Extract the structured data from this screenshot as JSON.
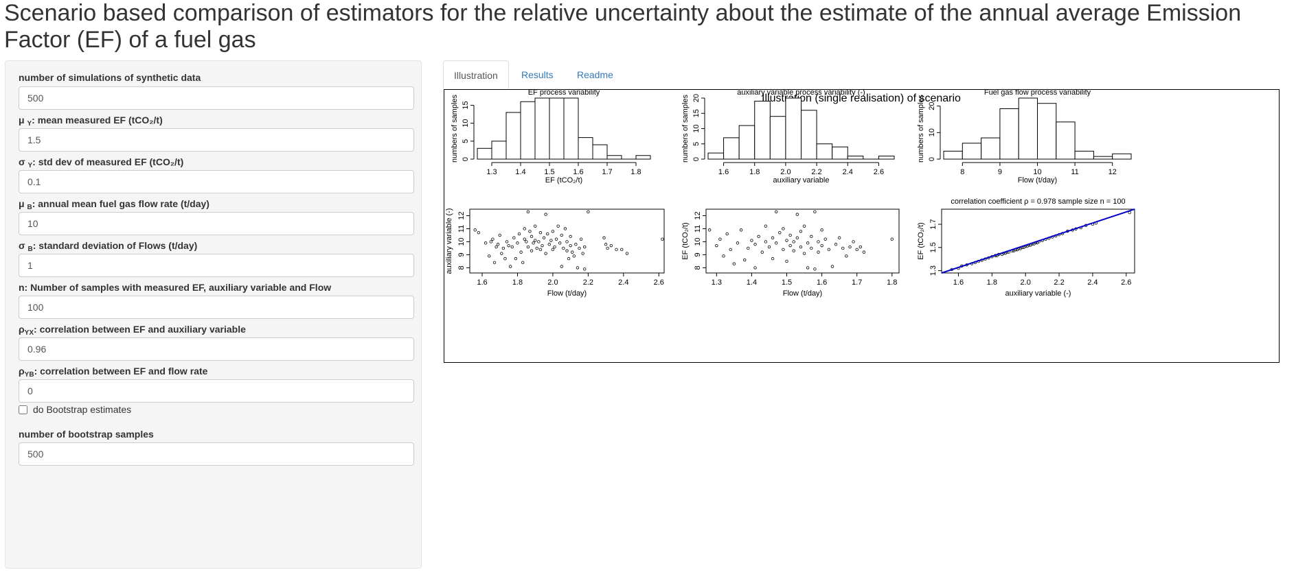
{
  "page": {
    "title": "Scenario based comparison of estimators for the relative uncertainty about the estimate of the annual average Emission Factor (EF) of a fuel gas"
  },
  "sidebar": {
    "fields": [
      {
        "label_pre": "number of simulations of synthetic data",
        "label_sub": "",
        "label_post": "",
        "value": "500"
      },
      {
        "label_pre": "μ ",
        "label_sub": "Y",
        "label_post": ": mean measured EF (tCO₂/t)",
        "value": "1.5"
      },
      {
        "label_pre": "σ ",
        "label_sub": "Y",
        "label_post": ": std dev of measured EF (tCO₂/t)",
        "value": "0.1"
      },
      {
        "label_pre": "μ ",
        "label_sub": "B",
        "label_post": ": annual mean fuel gas flow rate (t/day)",
        "value": "10"
      },
      {
        "label_pre": "σ ",
        "label_sub": "B",
        "label_post": ": standard deviation of Flows (t/day)",
        "value": "1"
      },
      {
        "label_pre": "n: Number of samples with measured EF, auxiliary variable and Flow",
        "label_sub": "",
        "label_post": "",
        "value": "100"
      },
      {
        "label_pre": "ρ",
        "label_sub": "YX",
        "label_post": ": correlation between EF and auxiliary variable",
        "value": "0.96"
      },
      {
        "label_pre": "ρ",
        "label_sub": "YB",
        "label_post": ": correlation between EF and flow rate",
        "value": "0"
      }
    ],
    "bootstrap_checkbox": {
      "label": "do Bootstrap estimates",
      "checked": false
    },
    "bootstrap_samples": {
      "label": "number of bootstrap samples",
      "value": "500"
    }
  },
  "tabs": [
    {
      "label": "Illustration",
      "active": true
    },
    {
      "label": "Results",
      "active": false
    },
    {
      "label": "Readme",
      "active": false
    }
  ],
  "figure": {
    "title": "Illustration (single realisation) of scenario"
  },
  "chart_data": [
    {
      "type": "bar",
      "subtype": "histogram",
      "title": "EF process variability",
      "xlabel": "EF (tCO₂/t)",
      "ylabel": "numbers of samples",
      "bin_edges": [
        1.25,
        1.3,
        1.35,
        1.4,
        1.45,
        1.5,
        1.55,
        1.6,
        1.65,
        1.7,
        1.75,
        1.8,
        1.85
      ],
      "values": [
        3,
        5,
        13,
        16,
        17,
        17,
        17,
        6,
        4,
        1,
        0,
        1
      ],
      "xticks": [
        "1.3",
        "1.4",
        "1.5",
        "1.6",
        "1.7",
        "1.8"
      ],
      "yticks": [
        "0",
        "5",
        "10",
        "15"
      ],
      "xlim": [
        1.25,
        1.85
      ],
      "ylim": [
        0,
        17
      ]
    },
    {
      "type": "bar",
      "subtype": "histogram",
      "title": "auxiliary variable process variability (-)",
      "xlabel": "auxiliary variable",
      "ylabel": "numbers of samples",
      "bin_edges": [
        1.5,
        1.6,
        1.7,
        1.8,
        1.9,
        2.0,
        2.1,
        2.2,
        2.3,
        2.4,
        2.5,
        2.6,
        2.7
      ],
      "values": [
        2,
        7,
        11,
        19,
        14,
        20,
        16,
        5,
        4,
        1,
        0,
        1
      ],
      "xticks": [
        "1.6",
        "1.8",
        "2.0",
        "2.2",
        "2.4",
        "2.6"
      ],
      "yticks": [
        "0",
        "5",
        "10",
        "15",
        "20"
      ],
      "xlim": [
        1.5,
        2.7
      ],
      "ylim": [
        0,
        20
      ]
    },
    {
      "type": "bar",
      "subtype": "histogram",
      "title": "Fuel gas flow process variability",
      "xlabel": "Flow (t/day)",
      "ylabel": "numbers of samples",
      "bin_edges": [
        7.5,
        8,
        8.5,
        9,
        9.5,
        10,
        10.5,
        11,
        11.5,
        12,
        12.5
      ],
      "values": [
        3,
        6,
        8,
        19,
        23,
        21,
        14,
        3,
        1,
        2
      ],
      "xticks": [
        "8",
        "9",
        "10",
        "11",
        "12"
      ],
      "yticks": [
        "0",
        "10",
        "20"
      ],
      "xlim": [
        7.5,
        12.5
      ],
      "ylim": [
        0,
        23
      ]
    },
    {
      "type": "scatter",
      "title": "",
      "xlabel": "Flow (t/day)",
      "ylabel": "auxiliary variable (-)",
      "xticks": [
        "1.6",
        "1.8",
        "2.0",
        "2.2",
        "2.4",
        "2.6"
      ],
      "yticks": [
        "8",
        "9",
        "10",
        "11",
        "12"
      ],
      "xlim": [
        1.53,
        2.63
      ],
      "ylim": [
        7.6,
        12.5
      ],
      "points": [
        [
          1.56,
          10.9
        ],
        [
          1.58,
          10.7
        ],
        [
          1.62,
          9.9
        ],
        [
          1.64,
          8.9
        ],
        [
          1.65,
          10.0
        ],
        [
          1.66,
          10.2
        ],
        [
          1.67,
          8.4
        ],
        [
          1.68,
          9.6
        ],
        [
          1.69,
          9.8
        ],
        [
          1.7,
          10.5
        ],
        [
          1.71,
          9.1
        ],
        [
          1.72,
          9.5
        ],
        [
          1.73,
          8.7
        ],
        [
          1.74,
          10.0
        ],
        [
          1.75,
          9.7
        ],
        [
          1.76,
          8.1
        ],
        [
          1.77,
          9.6
        ],
        [
          1.78,
          10.3
        ],
        [
          1.79,
          8.7
        ],
        [
          1.8,
          9.9
        ],
        [
          1.81,
          10.6
        ],
        [
          1.82,
          9.2
        ],
        [
          1.83,
          8.4
        ],
        [
          1.84,
          11.0
        ],
        [
          1.84,
          10.2
        ],
        [
          1.85,
          10.0
        ],
        [
          1.86,
          9.6
        ],
        [
          1.86,
          12.3
        ],
        [
          1.87,
          10.8
        ],
        [
          1.88,
          9.3
        ],
        [
          1.88,
          10.4
        ],
        [
          1.89,
          9.9
        ],
        [
          1.9,
          10.1
        ],
        [
          1.9,
          11.2
        ],
        [
          1.91,
          9.5
        ],
        [
          1.92,
          10.0
        ],
        [
          1.93,
          9.4
        ],
        [
          1.93,
          10.7
        ],
        [
          1.94,
          9.7
        ],
        [
          1.95,
          10.3
        ],
        [
          1.96,
          12.1
        ],
        [
          1.96,
          9.1
        ],
        [
          1.97,
          10.6
        ],
        [
          1.98,
          9.8
        ],
        [
          1.99,
          10.1
        ],
        [
          2.0,
          9.4
        ],
        [
          2.0,
          10.8
        ],
        [
          2.01,
          9.6
        ],
        [
          2.02,
          10.2
        ],
        [
          2.03,
          11.2
        ],
        [
          2.04,
          9.9
        ],
        [
          2.05,
          8.1
        ],
        [
          2.05,
          10.5
        ],
        [
          2.06,
          9.5
        ],
        [
          2.07,
          11.0
        ],
        [
          2.08,
          9.3
        ],
        [
          2.08,
          10.0
        ],
        [
          2.09,
          8.7
        ],
        [
          2.1,
          9.7
        ],
        [
          2.1,
          10.4
        ],
        [
          2.11,
          9.2
        ],
        [
          2.12,
          8.9
        ],
        [
          2.13,
          9.8
        ],
        [
          2.14,
          8.0
        ],
        [
          2.15,
          9.5
        ],
        [
          2.16,
          10.2
        ],
        [
          2.17,
          9.1
        ],
        [
          2.18,
          7.9
        ],
        [
          2.18,
          9.6
        ],
        [
          2.2,
          12.3
        ],
        [
          2.29,
          10.3
        ],
        [
          2.3,
          9.8
        ],
        [
          2.31,
          9.5
        ],
        [
          2.33,
          9.7
        ],
        [
          2.36,
          9.4
        ],
        [
          2.39,
          9.4
        ],
        [
          2.42,
          9.1
        ],
        [
          2.62,
          10.2
        ]
      ]
    },
    {
      "type": "scatter",
      "title": "",
      "xlabel": "Flow (t/day)",
      "ylabel": "EF (tCO₂/t)",
      "xticks": [
        "1.3",
        "1.4",
        "1.5",
        "1.6",
        "1.7",
        "1.8"
      ],
      "yticks": [
        "8",
        "9",
        "10",
        "11",
        "12"
      ],
      "xlim": [
        1.27,
        1.82
      ],
      "ylim": [
        7.6,
        12.5
      ],
      "points": [
        [
          1.28,
          10.9
        ],
        [
          1.3,
          9.7
        ],
        [
          1.31,
          10.2
        ],
        [
          1.32,
          8.9
        ],
        [
          1.33,
          10.6
        ],
        [
          1.34,
          9.4
        ],
        [
          1.35,
          8.3
        ],
        [
          1.36,
          9.9
        ],
        [
          1.37,
          10.9
        ],
        [
          1.38,
          8.6
        ],
        [
          1.39,
          9.5
        ],
        [
          1.4,
          10.1
        ],
        [
          1.41,
          8.0
        ],
        [
          1.41,
          9.8
        ],
        [
          1.42,
          10.4
        ],
        [
          1.43,
          9.2
        ],
        [
          1.44,
          11.2
        ],
        [
          1.44,
          10.0
        ],
        [
          1.45,
          9.6
        ],
        [
          1.46,
          8.7
        ],
        [
          1.46,
          10.3
        ],
        [
          1.47,
          12.3
        ],
        [
          1.47,
          9.9
        ],
        [
          1.48,
          10.7
        ],
        [
          1.49,
          9.4
        ],
        [
          1.49,
          11.0
        ],
        [
          1.5,
          10.1
        ],
        [
          1.5,
          8.5
        ],
        [
          1.51,
          9.7
        ],
        [
          1.51,
          10.5
        ],
        [
          1.52,
          9.3
        ],
        [
          1.52,
          10.0
        ],
        [
          1.53,
          12.1
        ],
        [
          1.53,
          10.3
        ],
        [
          1.54,
          9.6
        ],
        [
          1.54,
          10.8
        ],
        [
          1.55,
          9.1
        ],
        [
          1.55,
          11.2
        ],
        [
          1.56,
          9.9
        ],
        [
          1.56,
          8.0
        ],
        [
          1.57,
          10.4
        ],
        [
          1.57,
          9.5
        ],
        [
          1.58,
          12.3
        ],
        [
          1.58,
          7.9
        ],
        [
          1.59,
          10.0
        ],
        [
          1.59,
          9.2
        ],
        [
          1.6,
          10.9
        ],
        [
          1.6,
          9.7
        ],
        [
          1.61,
          10.2
        ],
        [
          1.62,
          9.4
        ],
        [
          1.63,
          8.1
        ],
        [
          1.64,
          9.8
        ],
        [
          1.65,
          10.3
        ],
        [
          1.66,
          9.5
        ],
        [
          1.67,
          8.9
        ],
        [
          1.68,
          9.6
        ],
        [
          1.69,
          10.0
        ],
        [
          1.7,
          9.4
        ],
        [
          1.71,
          9.6
        ],
        [
          1.72,
          9.2
        ],
        [
          1.8,
          10.2
        ]
      ]
    },
    {
      "type": "scatter",
      "title": "correlation coefficient ρ = 0.978  sample size n = 100",
      "xlabel": "auxiliary variable (-)",
      "ylabel": "EF (tCO₂/t)",
      "xticks": [
        "1.6",
        "1.8",
        "2.0",
        "2.2",
        "2.4",
        "2.6"
      ],
      "yticks": [
        "1.3",
        "1.5",
        "1.7"
      ],
      "xlim": [
        1.5,
        2.65
      ],
      "ylim": [
        1.28,
        1.83
      ],
      "regression_line": {
        "x": [
          1.5,
          2.65
        ],
        "y": [
          1.28,
          1.83
        ],
        "color": "#0000cc"
      },
      "points": [
        [
          1.56,
          1.31
        ],
        [
          1.6,
          1.32
        ],
        [
          1.62,
          1.34
        ],
        [
          1.65,
          1.35
        ],
        [
          1.68,
          1.36
        ],
        [
          1.7,
          1.37
        ],
        [
          1.72,
          1.38
        ],
        [
          1.74,
          1.39
        ],
        [
          1.76,
          1.4
        ],
        [
          1.78,
          1.41
        ],
        [
          1.8,
          1.42
        ],
        [
          1.82,
          1.43
        ],
        [
          1.83,
          1.43
        ],
        [
          1.84,
          1.44
        ],
        [
          1.86,
          1.44
        ],
        [
          1.87,
          1.45
        ],
        [
          1.88,
          1.45
        ],
        [
          1.89,
          1.46
        ],
        [
          1.9,
          1.46
        ],
        [
          1.92,
          1.47
        ],
        [
          1.93,
          1.47
        ],
        [
          1.94,
          1.48
        ],
        [
          1.95,
          1.48
        ],
        [
          1.96,
          1.49
        ],
        [
          1.97,
          1.49
        ],
        [
          1.98,
          1.5
        ],
        [
          1.99,
          1.5
        ],
        [
          2.0,
          1.51
        ],
        [
          2.01,
          1.51
        ],
        [
          2.02,
          1.52
        ],
        [
          2.03,
          1.52
        ],
        [
          2.04,
          1.53
        ],
        [
          2.05,
          1.53
        ],
        [
          2.06,
          1.54
        ],
        [
          2.07,
          1.54
        ],
        [
          2.08,
          1.55
        ],
        [
          2.1,
          1.56
        ],
        [
          2.12,
          1.57
        ],
        [
          2.14,
          1.58
        ],
        [
          2.16,
          1.59
        ],
        [
          2.18,
          1.6
        ],
        [
          2.2,
          1.61
        ],
        [
          2.22,
          1.62
        ],
        [
          2.25,
          1.64
        ],
        [
          2.28,
          1.65
        ],
        [
          2.3,
          1.66
        ],
        [
          2.33,
          1.67
        ],
        [
          2.36,
          1.69
        ],
        [
          2.4,
          1.7
        ],
        [
          2.42,
          1.71
        ],
        [
          2.62,
          1.8
        ]
      ]
    }
  ]
}
